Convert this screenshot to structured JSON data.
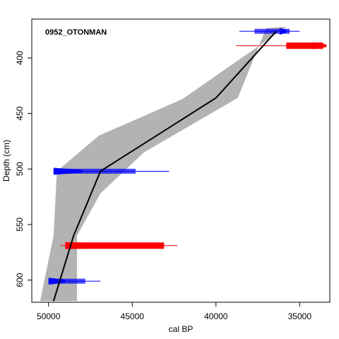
{
  "chart_data": {
    "type": "line",
    "title": "0952_OTONMAN",
    "xlabel": "cal BP",
    "ylabel": "Depth (cm)",
    "xlim": [
      51000,
      33200
    ],
    "ylim": [
      365,
      620
    ],
    "x_ticks": [
      50000,
      45000,
      40000,
      35000
    ],
    "y_ticks": [
      400,
      450,
      500,
      550,
      600
    ],
    "grid": false,
    "colors": {
      "envelope": "#b3b3b3",
      "median": "#000000",
      "date_blue": "#0000ff",
      "date_red": "#ff0000"
    },
    "median_line": {
      "x": [
        49700,
        48500,
        46900,
        40000,
        36400
      ],
      "y": [
        619,
        560,
        502,
        436,
        376
      ]
    },
    "envelope": {
      "upper": {
        "x": [
          50500,
          49700,
          49500,
          47000,
          42000,
          35800
        ],
        "y": [
          619,
          560,
          502,
          470,
          437,
          372
        ]
      },
      "lower": {
        "x": [
          48300,
          48300,
          46900,
          44300,
          38700,
          37000
        ],
        "y": [
          619,
          560,
          522,
          485,
          436,
          373
        ]
      }
    },
    "dates": [
      {
        "type": "calibrated",
        "color": "blue",
        "depth": 376,
        "range": [
          38600,
          35000
        ],
        "core": [
          37700,
          35600
        ],
        "peak": [
          36200,
          35800
        ]
      },
      {
        "type": "outlier",
        "color": "red",
        "depth": 389,
        "range": [
          38800,
          33400
        ],
        "core": [
          35800,
          33600
        ],
        "peak": [
          34200,
          33400
        ]
      },
      {
        "type": "calibrated",
        "color": "blue",
        "depth": 502,
        "range": [
          49700,
          42800
        ],
        "core": [
          49700,
          44800
        ],
        "peak": [
          49700,
          48000
        ]
      },
      {
        "type": "outlier",
        "color": "red",
        "depth": 569,
        "range": [
          49300,
          42300
        ],
        "core": [
          49000,
          43100
        ],
        "peak": [
          49000,
          43100
        ]
      },
      {
        "type": "calibrated",
        "color": "blue",
        "depth": 601,
        "range": [
          50000,
          46900
        ],
        "core": [
          50000,
          47800
        ],
        "peak": [
          50000,
          49000
        ]
      }
    ]
  }
}
